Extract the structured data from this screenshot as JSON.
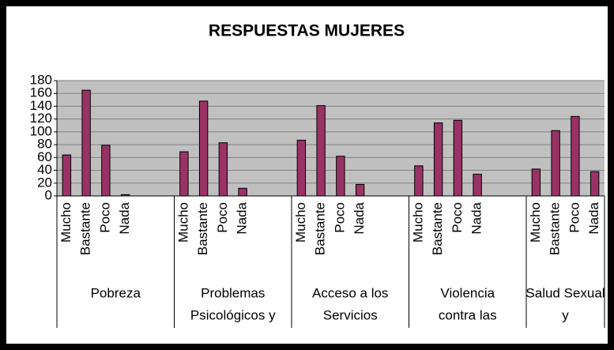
{
  "chart_data": {
    "type": "bar",
    "title": "RESPUESTAS MUJERES",
    "color": "#993366",
    "grid": true,
    "ylim": [
      0,
      180
    ],
    "yticks": [
      0,
      20,
      40,
      60,
      80,
      100,
      120,
      140,
      160,
      180
    ],
    "groups": [
      {
        "label": [
          "Pobreza"
        ],
        "categories": [
          "Mucho",
          "Bastante",
          "Poco",
          "Nada",
          null,
          null
        ],
        "values": [
          64,
          165,
          79,
          2,
          null,
          null
        ]
      },
      {
        "label": [
          "Problemas",
          "Psicológicos y"
        ],
        "categories": [
          "Mucho",
          "Bastante",
          "Poco",
          "Nada",
          null,
          null
        ],
        "values": [
          69,
          148,
          83,
          12,
          null,
          null
        ]
      },
      {
        "label": [
          "Acceso a los",
          "Servicios"
        ],
        "categories": [
          "Mucho",
          "Bastante",
          "Poco",
          "Nada",
          null,
          null
        ],
        "values": [
          87,
          141,
          62,
          18,
          null,
          null
        ]
      },
      {
        "label": [
          "Violencia",
          "contra las"
        ],
        "categories": [
          "Mucho",
          "Bastante",
          "Poco",
          "Nada",
          null,
          null
        ],
        "values": [
          47,
          114,
          118,
          34,
          null,
          null
        ]
      },
      {
        "label": [
          "Salud Sexual",
          "y"
        ],
        "categories": [
          "Mucho",
          "Bastante",
          "Poco",
          "Nada"
        ],
        "values": [
          42,
          102,
          124,
          38
        ]
      }
    ]
  }
}
